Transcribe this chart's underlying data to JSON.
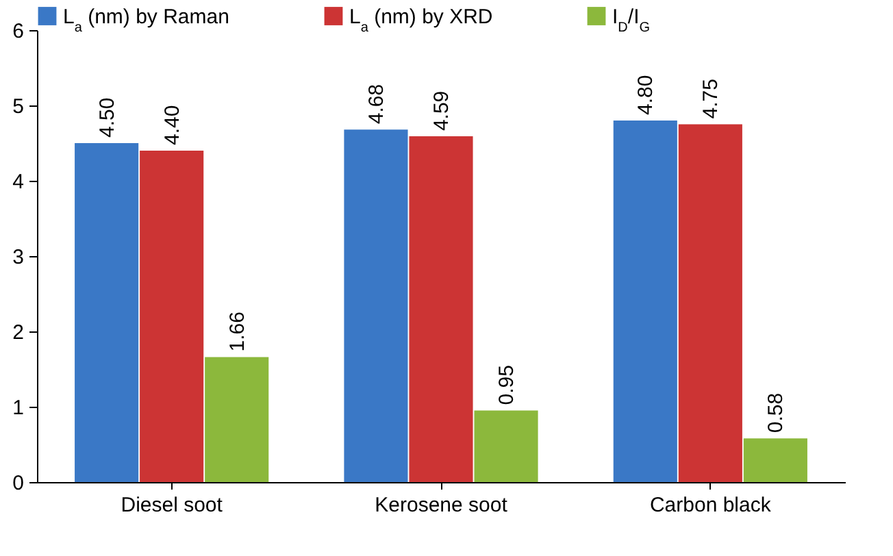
{
  "chart_data": {
    "type": "bar",
    "categories": [
      "Diesel soot",
      "Kerosene soot",
      "Carbon black"
    ],
    "series": [
      {
        "name": "L$_{a}$ (nm) by Raman",
        "color": "#3a78c6",
        "values": [
          4.5,
          4.68,
          4.8
        ],
        "value_labels": [
          "4.50",
          "4.68",
          "4.80"
        ]
      },
      {
        "name": "L$_{a}$ (nm) by XRD",
        "color": "#cc3434",
        "values": [
          4.4,
          4.59,
          4.75
        ],
        "value_labels": [
          "4.40",
          "4.59",
          "4.75"
        ]
      },
      {
        "name": "I$_{D}$/I$_{G}$",
        "color": "#8cb83c",
        "values": [
          1.66,
          0.95,
          0.58
        ],
        "value_labels": [
          "1.66",
          "0.95",
          "0.58"
        ]
      }
    ],
    "ylim": [
      0,
      6
    ],
    "yticks": [
      0,
      1,
      2,
      3,
      4,
      5,
      6
    ],
    "grid": false,
    "legend": "top"
  }
}
